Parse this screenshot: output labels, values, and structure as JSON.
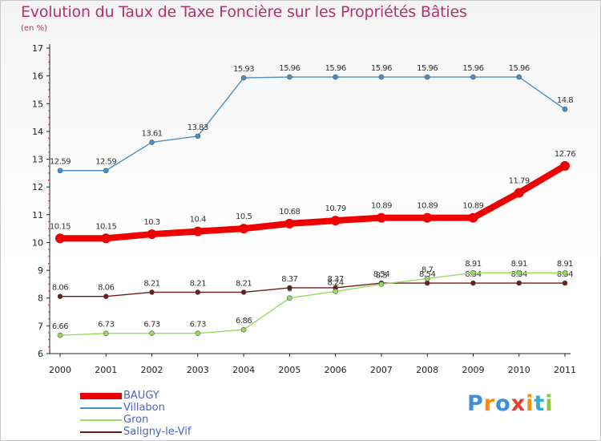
{
  "header": {
    "title": "Evolution du Taux de Taxe Foncière sur les Propriétés Bâties",
    "unit": "(en %)"
  },
  "logo": {
    "letters": [
      "P",
      "r",
      "o",
      "x",
      "i",
      "t",
      "i"
    ],
    "colors": [
      "#3f8fd8",
      "#f28c1c",
      "#3f8fd8",
      "#e2402f",
      "#f28c1c",
      "#2fb0d8",
      "#8cc63f"
    ]
  },
  "chart_data": {
    "type": "line",
    "title": "Evolution du Taux de Taxe Foncière sur les Propriétés Bâties",
    "ylabel": "(en %)",
    "xlabel": "",
    "x": [
      "2000",
      "2001",
      "2002",
      "2003",
      "2004",
      "2005",
      "2006",
      "2007",
      "2008",
      "2009",
      "2010",
      "2011"
    ],
    "ylim": [
      6,
      17
    ],
    "yticks": [
      "6",
      "7",
      "8",
      "9",
      "10",
      "11",
      "12",
      "13",
      "14",
      "15",
      "16",
      "17"
    ],
    "series": [
      {
        "name": "Villabon",
        "color": "#4a8fc8",
        "values": [
          12.59,
          12.59,
          13.61,
          13.83,
          15.93,
          15.96,
          15.96,
          15.96,
          15.96,
          15.96,
          15.96,
          14.8
        ],
        "labels": [
          "12.59",
          "12.59",
          "13.61",
          "13.83",
          "15.93",
          "15.96",
          "15.96",
          "15.96",
          "15.96",
          "15.96",
          "15.96",
          "14.8"
        ]
      },
      {
        "name": "Saligny-le-Vif",
        "color": "#6e1b1b",
        "values": [
          8.06,
          8.06,
          8.21,
          8.21,
          8.21,
          8.37,
          8.37,
          8.54,
          8.54,
          8.54,
          8.54,
          8.54
        ],
        "labels": [
          "8.06",
          "8.06",
          "8.21",
          "8.21",
          "8.21",
          "8.37",
          "8.37",
          "8.54",
          "8.54",
          "8.54",
          "8.54",
          "8.54"
        ]
      },
      {
        "name": "Gron",
        "color": "#96dc5a",
        "values": [
          6.66,
          6.73,
          6.73,
          6.73,
          6.86,
          8.0,
          8.24,
          8.5,
          8.7,
          8.91,
          8.91,
          8.91
        ],
        "labels": [
          "6.66",
          "6.73",
          "6.73",
          "6.73",
          "6.86",
          "8",
          "8.24",
          "8.5",
          "8.7",
          "8.91",
          "8.91",
          "8.91"
        ]
      },
      {
        "name": "BAUGY",
        "color": "#ee0000",
        "values": [
          10.15,
          10.15,
          10.3,
          10.4,
          10.5,
          10.68,
          10.79,
          10.89,
          10.89,
          10.89,
          11.79,
          12.76
        ],
        "labels": [
          "10.15",
          "10.15",
          "10.3",
          "10.4",
          "10.5",
          "10.68",
          "10.79",
          "10.89",
          "10.89",
          "10.89",
          "11.79",
          "12.76"
        ]
      }
    ],
    "legend_order": [
      "BAUGY",
      "Villabon",
      "Gron",
      "Saligny-le-Vif"
    ],
    "legend_position": "bottom-left"
  }
}
